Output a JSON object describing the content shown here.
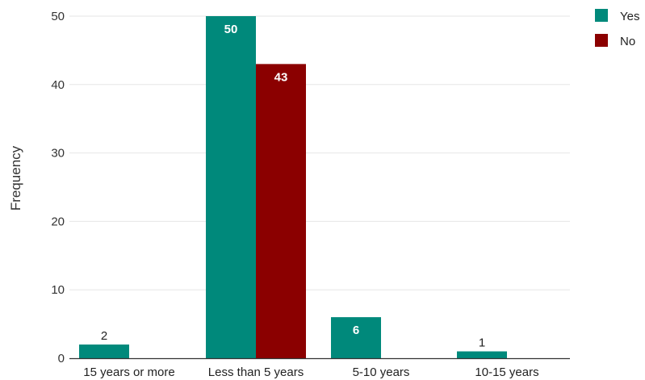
{
  "chart_data": {
    "type": "bar",
    "title": "",
    "xlabel": "",
    "ylabel": "Frequency",
    "ylim": [
      0,
      50
    ],
    "yticks": [
      0,
      10,
      20,
      30,
      40,
      50
    ],
    "grid": true,
    "legend_position": "top-right",
    "categories": [
      "15 years or more",
      "Less than 5 years",
      "5-10 years",
      "10-15 years"
    ],
    "series": [
      {
        "name": "Yes",
        "color": "#00897b",
        "values": [
          2,
          50,
          6,
          1
        ]
      },
      {
        "name": "No",
        "color": "#8b0000",
        "values": [
          0,
          43,
          0,
          0
        ]
      }
    ]
  }
}
